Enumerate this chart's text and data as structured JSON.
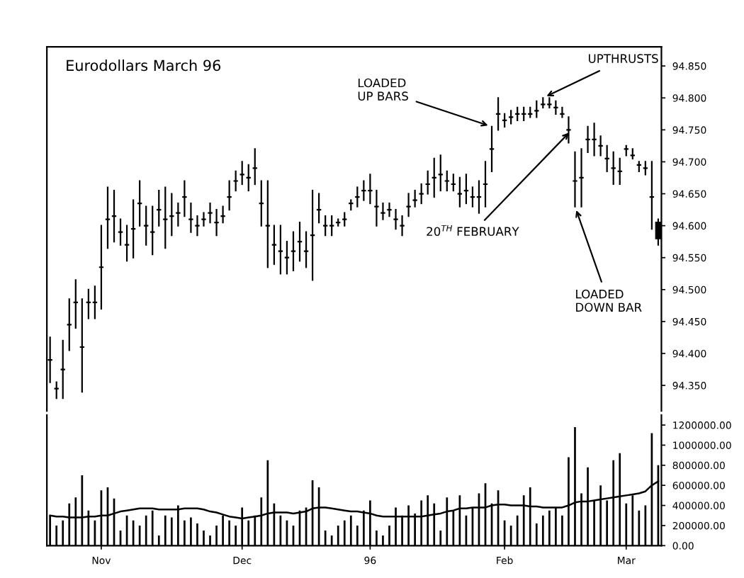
{
  "chart_data": [
    {
      "type": "candlestick",
      "title": "Eurodollars March 96",
      "tick_labels": "y",
      "grid": false,
      "categories": [
        null,
        null,
        null,
        null,
        null,
        null,
        null,
        null,
        null,
        null,
        null,
        null,
        null,
        null,
        null,
        null,
        null,
        null,
        null,
        null,
        null,
        null,
        null,
        null,
        null,
        null,
        null,
        null,
        null,
        null,
        null,
        null,
        null,
        null,
        null,
        null,
        null,
        null,
        null,
        null,
        null,
        null,
        null,
        null,
        null,
        null,
        null,
        null,
        null,
        null,
        null,
        null,
        null,
        null,
        null,
        null,
        null,
        null,
        null,
        null,
        null,
        null,
        null,
        null,
        null,
        null,
        null,
        null,
        null,
        null,
        null,
        null,
        null,
        null,
        null,
        null,
        null,
        null,
        null,
        null,
        null,
        null,
        null,
        null,
        null,
        null,
        null,
        null,
        null,
        null,
        null,
        null,
        null,
        null,
        null,
        null
      ],
      "ohlc": [
        [
          94.39,
          94.425,
          94.355,
          94.39
        ],
        [
          94.345,
          94.355,
          94.33,
          94.345
        ],
        [
          94.375,
          94.42,
          94.33,
          94.375
        ],
        [
          94.445,
          94.485,
          94.405,
          94.445
        ],
        [
          94.48,
          94.515,
          94.44,
          94.48
        ],
        [
          94.41,
          94.485,
          94.34,
          94.41
        ],
        [
          94.48,
          94.5,
          94.455,
          94.48
        ],
        [
          94.48,
          94.505,
          94.455,
          94.48
        ],
        [
          94.535,
          94.6,
          94.47,
          94.535
        ],
        [
          94.61,
          94.66,
          94.565,
          94.61
        ],
        [
          94.615,
          94.655,
          94.575,
          94.615
        ],
        [
          94.59,
          94.61,
          94.57,
          94.59
        ],
        [
          94.57,
          94.6,
          94.545,
          94.57
        ],
        [
          94.595,
          94.64,
          94.55,
          94.595
        ],
        [
          94.635,
          94.67,
          94.6,
          94.635
        ],
        [
          94.6,
          94.63,
          94.57,
          94.6
        ],
        [
          94.59,
          94.63,
          94.555,
          94.59
        ],
        [
          94.625,
          94.655,
          94.6,
          94.625
        ],
        [
          94.61,
          94.66,
          94.565,
          94.61
        ],
        [
          94.615,
          94.65,
          94.585,
          94.615
        ],
        [
          94.62,
          94.635,
          94.6,
          94.62
        ],
        [
          94.645,
          94.67,
          94.615,
          94.645
        ],
        [
          94.61,
          94.635,
          94.59,
          94.61
        ],
        [
          94.6,
          94.615,
          94.585,
          94.6
        ],
        [
          94.61,
          94.62,
          94.6,
          94.61
        ],
        [
          94.62,
          94.635,
          94.605,
          94.62
        ],
        [
          94.605,
          94.625,
          94.585,
          94.605
        ],
        [
          94.615,
          94.63,
          94.605,
          94.615
        ],
        [
          94.645,
          94.67,
          94.625,
          94.645
        ],
        [
          94.67,
          94.685,
          94.655,
          94.67
        ],
        [
          94.68,
          94.7,
          94.665,
          94.68
        ],
        [
          94.675,
          94.695,
          94.655,
          94.675
        ],
        [
          94.69,
          94.72,
          94.665,
          94.69
        ],
        [
          94.635,
          94.67,
          94.6,
          94.635
        ],
        [
          94.6,
          94.67,
          94.535,
          94.6
        ],
        [
          94.57,
          94.6,
          94.54,
          94.57
        ],
        [
          94.56,
          94.6,
          94.525,
          94.56
        ],
        [
          94.55,
          94.575,
          94.525,
          94.55
        ],
        [
          94.56,
          94.59,
          94.53,
          94.56
        ],
        [
          94.575,
          94.605,
          94.545,
          94.575
        ],
        [
          94.56,
          94.59,
          94.535,
          94.56
        ],
        [
          94.585,
          94.655,
          94.515,
          94.585
        ],
        [
          94.625,
          94.65,
          94.605,
          94.625
        ],
        [
          94.6,
          94.615,
          94.585,
          94.6
        ],
        [
          94.6,
          94.615,
          94.585,
          94.6
        ],
        [
          94.605,
          94.61,
          94.6,
          94.605
        ],
        [
          94.61,
          94.62,
          94.6,
          94.61
        ],
        [
          94.635,
          94.64,
          94.625,
          94.635
        ],
        [
          94.645,
          94.66,
          94.63,
          94.645
        ],
        [
          94.655,
          94.67,
          94.64,
          94.655
        ],
        [
          94.655,
          94.68,
          94.635,
          94.655
        ],
        [
          94.63,
          94.655,
          94.6,
          94.63
        ],
        [
          94.62,
          94.635,
          94.61,
          94.62
        ],
        [
          94.625,
          94.635,
          94.615,
          94.625
        ],
        [
          94.61,
          94.625,
          94.595,
          94.61
        ],
        [
          94.6,
          94.615,
          94.585,
          94.6
        ],
        [
          94.63,
          94.65,
          94.615,
          94.63
        ],
        [
          94.64,
          94.655,
          94.63,
          94.64
        ],
        [
          94.65,
          94.665,
          94.635,
          94.65
        ],
        [
          94.665,
          94.685,
          94.65,
          94.665
        ],
        [
          94.675,
          94.705,
          94.645,
          94.675
        ],
        [
          94.68,
          94.71,
          94.655,
          94.68
        ],
        [
          94.67,
          94.685,
          94.655,
          94.67
        ],
        [
          94.665,
          94.68,
          94.655,
          94.665
        ],
        [
          94.65,
          94.675,
          94.63,
          94.65
        ],
        [
          94.655,
          94.68,
          94.635,
          94.655
        ],
        [
          94.645,
          94.66,
          94.63,
          94.645
        ],
        [
          94.645,
          94.67,
          94.62,
          94.645
        ],
        [
          94.665,
          94.7,
          94.63,
          94.665
        ],
        [
          94.72,
          94.755,
          94.685,
          94.72
        ],
        [
          94.775,
          94.8,
          94.75,
          94.775
        ],
        [
          94.765,
          94.775,
          94.755,
          94.765
        ],
        [
          94.77,
          94.78,
          94.76,
          94.77
        ],
        [
          94.775,
          94.785,
          94.765,
          94.775
        ],
        [
          94.775,
          94.785,
          94.765,
          94.775
        ],
        [
          94.775,
          94.785,
          94.77,
          94.775
        ],
        [
          94.78,
          94.795,
          94.77,
          94.78
        ],
        [
          94.79,
          94.8,
          94.785,
          94.79
        ],
        [
          94.79,
          94.8,
          94.785,
          94.79
        ],
        [
          94.785,
          94.795,
          94.775,
          94.785
        ],
        [
          94.775,
          94.785,
          94.77,
          94.775
        ],
        [
          94.75,
          94.77,
          94.73,
          94.75
        ],
        [
          94.67,
          94.715,
          94.63,
          94.67
        ],
        [
          94.675,
          94.72,
          94.63,
          94.675
        ],
        [
          94.735,
          94.755,
          94.715,
          94.735
        ],
        [
          94.735,
          94.76,
          94.71,
          94.735
        ],
        [
          94.725,
          94.74,
          94.71,
          94.725
        ],
        [
          94.705,
          94.725,
          94.685,
          94.705
        ],
        [
          94.69,
          94.715,
          94.665,
          94.69
        ],
        [
          94.685,
          94.705,
          94.665,
          94.685
        ],
        [
          94.72,
          94.725,
          94.71,
          94.72
        ],
        [
          94.71,
          94.72,
          94.705,
          94.71
        ],
        [
          94.695,
          94.7,
          94.685,
          94.695
        ],
        [
          94.69,
          94.7,
          94.68,
          94.69
        ],
        [
          94.645,
          94.7,
          94.595,
          94.645
        ],
        [
          94.605,
          94.61,
          94.57,
          94.58
        ]
      ],
      "ylim": [
        94.31,
        94.88
      ],
      "yticks": [
        {
          "value": 94.35,
          "label": "94.350"
        },
        {
          "value": 94.4,
          "label": "94.400"
        },
        {
          "value": 94.45,
          "label": "94.450"
        },
        {
          "value": 94.5,
          "label": "94.500"
        },
        {
          "value": 94.55,
          "label": "94.550"
        },
        {
          "value": 94.6,
          "label": "94.600"
        },
        {
          "value": 94.65,
          "label": "94.650"
        },
        {
          "value": 94.7,
          "label": "94.700"
        },
        {
          "value": 94.75,
          "label": "94.750"
        },
        {
          "value": 94.8,
          "label": "94.800"
        },
        {
          "value": 94.85,
          "label": "94.850"
        }
      ],
      "annotations": [
        "LOADED\nUP BARS",
        "UPTHRUSTS",
        "20$^{TH}$ FEBRUARY",
        "LOADED\nDOWN BAR"
      ]
    },
    {
      "type": "bar",
      "grid": false,
      "categories": [
        null,
        null,
        null,
        null,
        null,
        null,
        null,
        null,
        "Nov",
        null,
        null,
        null,
        null,
        null,
        null,
        null,
        null,
        null,
        null,
        null,
        null,
        null,
        null,
        null,
        null,
        null,
        null,
        null,
        null,
        null,
        "Dec",
        null,
        null,
        null,
        null,
        null,
        null,
        null,
        null,
        null,
        null,
        null,
        null,
        null,
        null,
        null,
        null,
        null,
        null,
        null,
        "96",
        null,
        null,
        null,
        null,
        null,
        null,
        null,
        null,
        null,
        null,
        null,
        null,
        null,
        null,
        null,
        null,
        null,
        null,
        null,
        null,
        "Feb",
        null,
        null,
        null,
        null,
        null,
        null,
        null,
        null,
        null,
        null,
        null,
        null,
        null,
        null,
        null,
        null,
        null,
        null,
        "Mar",
        null,
        null,
        null,
        null,
        null
      ],
      "series": [
        {
          "type": "bar",
          "color": "#000000",
          "values": [
            300000,
            200000,
            250000,
            420000,
            480000,
            700000,
            350000,
            250000,
            550000,
            580000,
            470000,
            150000,
            300000,
            250000,
            200000,
            300000,
            350000,
            100000,
            300000,
            280000,
            400000,
            250000,
            280000,
            220000,
            150000,
            100000,
            200000,
            300000,
            250000,
            200000,
            380000,
            250000,
            300000,
            480000,
            850000,
            420000,
            300000,
            250000,
            200000,
            350000,
            380000,
            650000,
            580000,
            150000,
            100000,
            200000,
            250000,
            300000,
            200000,
            350000,
            450000,
            150000,
            100000,
            200000,
            380000,
            300000,
            400000,
            320000,
            450000,
            500000,
            420000,
            150000,
            480000,
            350000,
            500000,
            300000,
            380000,
            520000,
            620000,
            420000,
            550000,
            250000,
            200000,
            300000,
            500000,
            580000,
            220000,
            300000,
            350000,
            380000,
            300000,
            880000,
            1180000,
            520000,
            780000,
            450000,
            600000,
            450000,
            850000,
            920000,
            420000,
            500000,
            350000,
            400000,
            1120000,
            800000
          ]
        },
        {
          "type": "line",
          "color": "#000000",
          "values": [
            300000,
            290000,
            290000,
            280000,
            280000,
            280000,
            290000,
            290000,
            300000,
            300000,
            320000,
            340000,
            350000,
            360000,
            370000,
            370000,
            370000,
            360000,
            360000,
            360000,
            360000,
            370000,
            370000,
            370000,
            360000,
            340000,
            330000,
            310000,
            290000,
            280000,
            270000,
            280000,
            290000,
            300000,
            320000,
            330000,
            330000,
            330000,
            320000,
            330000,
            340000,
            370000,
            380000,
            380000,
            370000,
            360000,
            350000,
            340000,
            340000,
            330000,
            320000,
            300000,
            290000,
            290000,
            290000,
            290000,
            290000,
            290000,
            290000,
            300000,
            310000,
            320000,
            340000,
            350000,
            370000,
            370000,
            380000,
            380000,
            380000,
            400000,
            410000,
            410000,
            400000,
            400000,
            400000,
            390000,
            390000,
            380000,
            380000,
            380000,
            380000,
            400000,
            430000,
            440000,
            440000,
            450000,
            460000,
            470000,
            480000,
            490000,
            500000,
            510000,
            520000,
            540000,
            600000,
            640000
          ]
        }
      ],
      "ylim": [
        0,
        1300000
      ],
      "yticks": [
        {
          "value": 0,
          "label": "0.00"
        },
        {
          "value": 200000,
          "label": "200000.00"
        },
        {
          "value": 400000,
          "label": "400000.00"
        },
        {
          "value": 600000,
          "label": "600000.00"
        },
        {
          "value": 800000,
          "label": "800000.00"
        },
        {
          "value": 1000000,
          "label": "1000000.00"
        },
        {
          "value": 1200000,
          "label": "1200000.00"
        }
      ]
    }
  ]
}
